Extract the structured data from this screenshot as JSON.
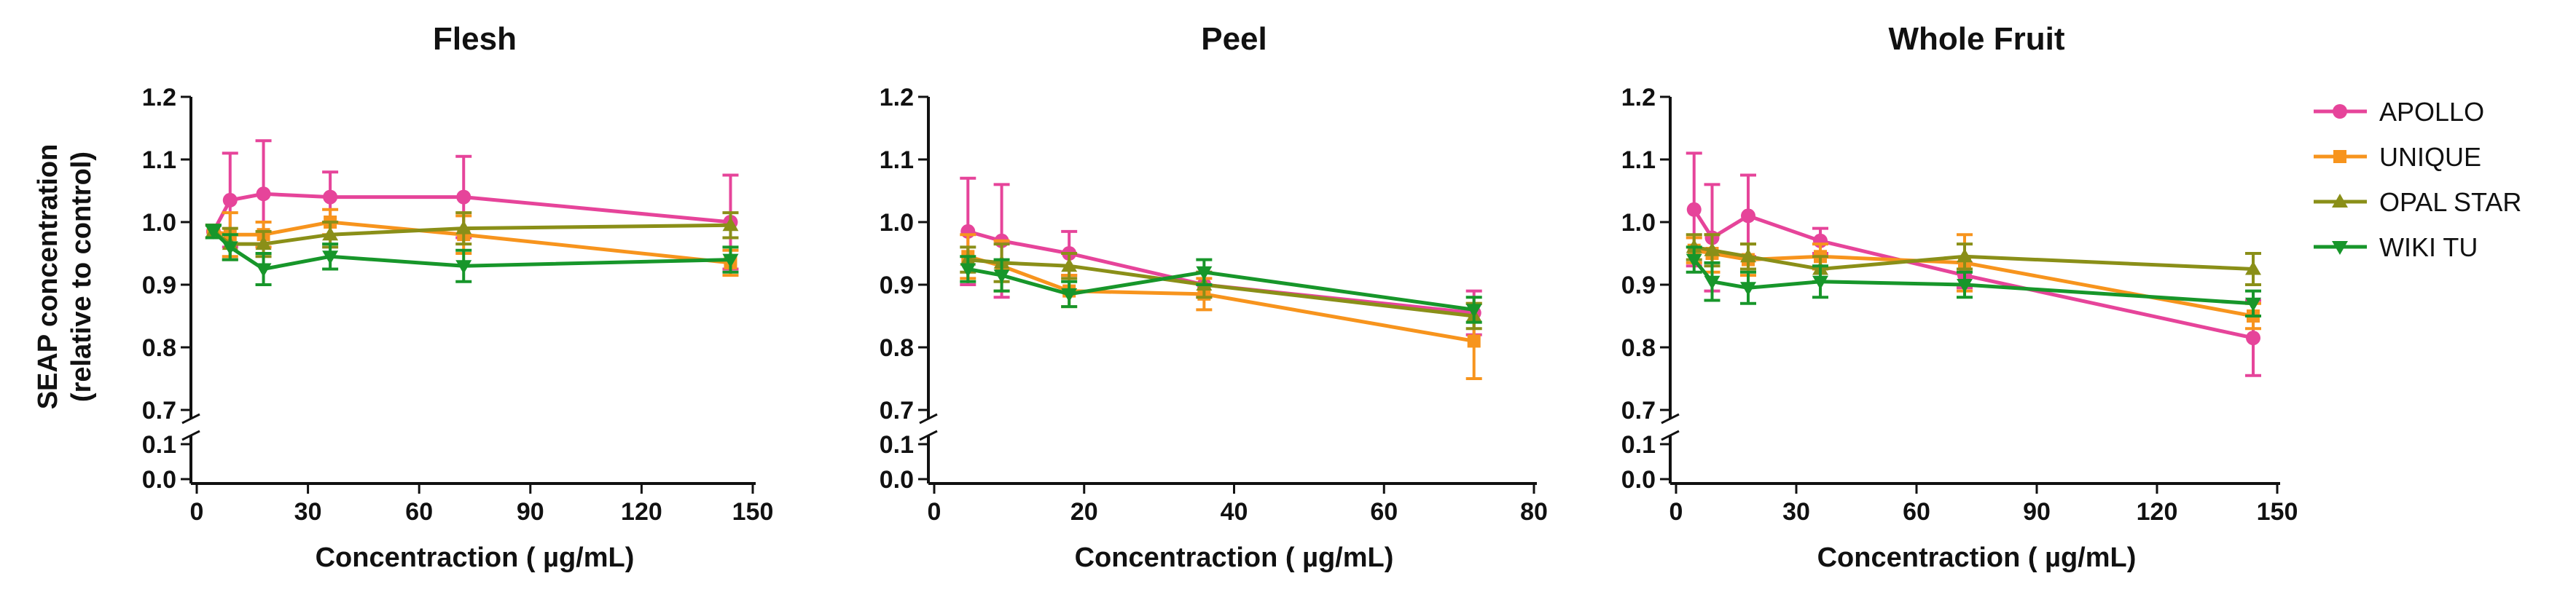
{
  "figure_ylabel": [
    "SEAP concentration",
    "(relative to control)"
  ],
  "legend": [
    {
      "name": "APOLLO",
      "color": "#e6449a",
      "marker": "circle"
    },
    {
      "name": "UNIQUE",
      "color": "#f7941d",
      "marker": "square"
    },
    {
      "name": "OPAL STAR",
      "color": "#8a8f18",
      "marker": "triangle-up"
    },
    {
      "name": "WIKI TU",
      "color": "#17962a",
      "marker": "triangle-down"
    }
  ],
  "chart_data": [
    {
      "type": "line",
      "title": "Flesh",
      "xlabel": "Concentraction ( µg/mL)",
      "ylabel": "SEAP concentration (relative to control)",
      "xlim": [
        0,
        150
      ],
      "xticks": [
        0,
        30,
        60,
        90,
        120,
        150
      ],
      "yticks_upper": [
        "0.7",
        "0.8",
        "0.9",
        "1.0",
        "1.1",
        "1.2"
      ],
      "yticks_lower": [
        "0.0",
        "0.1"
      ],
      "ylim_upper": [
        0.7,
        1.2
      ],
      "ylim_lower": [
        0.0,
        0.1
      ],
      "series": [
        {
          "name": "APOLLO",
          "x": [
            4.5,
            9,
            18,
            36,
            72,
            144
          ],
          "y": [
            0.985,
            1.035,
            1.045,
            1.04,
            1.04,
            1.0
          ],
          "err": [
            0.01,
            0.075,
            0.085,
            0.04,
            0.065,
            0.075
          ]
        },
        {
          "name": "UNIQUE",
          "x": [
            4.5,
            9,
            18,
            36,
            72,
            144
          ],
          "y": [
            0.985,
            0.98,
            0.98,
            1.0,
            0.98,
            0.935
          ],
          "err": [
            0.01,
            0.035,
            0.02,
            0.02,
            0.03,
            0.02
          ]
        },
        {
          "name": "OPAL STAR",
          "x": [
            4.5,
            9,
            18,
            36,
            72,
            144
          ],
          "y": [
            0.985,
            0.965,
            0.965,
            0.98,
            0.99,
            0.995
          ],
          "err": [
            0.01,
            0.025,
            0.02,
            0.02,
            0.025,
            0.02
          ]
        },
        {
          "name": "WIKI TU",
          "x": [
            4.5,
            9,
            18,
            36,
            72,
            144
          ],
          "y": [
            0.985,
            0.96,
            0.925,
            0.945,
            0.93,
            0.94
          ],
          "err": [
            0.01,
            0.02,
            0.025,
            0.02,
            0.025,
            0.02
          ]
        }
      ]
    },
    {
      "type": "line",
      "title": "Peel",
      "xlabel": "Concentraction ( µg/mL)",
      "ylabel": "SEAP concentration (relative to control)",
      "xlim": [
        0,
        80
      ],
      "xticks": [
        0,
        20,
        40,
        60,
        80
      ],
      "yticks_upper": [
        "0.7",
        "0.8",
        "0.9",
        "1.0",
        "1.1",
        "1.2"
      ],
      "yticks_lower": [
        "0.0",
        "0.1"
      ],
      "ylim_upper": [
        0.7,
        1.2
      ],
      "ylim_lower": [
        0.0,
        0.1
      ],
      "series": [
        {
          "name": "APOLLO",
          "x": [
            4.5,
            9,
            18,
            36,
            72
          ],
          "y": [
            0.985,
            0.97,
            0.95,
            0.9,
            0.855
          ],
          "err": [
            0.085,
            0.09,
            0.035,
            0.02,
            0.035
          ]
        },
        {
          "name": "UNIQUE",
          "x": [
            4.5,
            9,
            18,
            36,
            72
          ],
          "y": [
            0.945,
            0.93,
            0.89,
            0.885,
            0.81
          ],
          "err": [
            0.035,
            0.04,
            0.025,
            0.025,
            0.06
          ]
        },
        {
          "name": "OPAL STAR",
          "x": [
            4.5,
            9,
            18,
            36,
            72
          ],
          "y": [
            0.94,
            0.935,
            0.93,
            0.9,
            0.85
          ],
          "err": [
            0.02,
            0.03,
            0.02,
            0.02,
            0.02
          ]
        },
        {
          "name": "WIKI TU",
          "x": [
            4.5,
            9,
            18,
            36,
            72
          ],
          "y": [
            0.925,
            0.915,
            0.885,
            0.92,
            0.86
          ],
          "err": [
            0.02,
            0.025,
            0.02,
            0.02,
            0.02
          ]
        }
      ]
    },
    {
      "type": "line",
      "title": "Whole Fruit",
      "xlabel": "Concentraction ( µg/mL)",
      "ylabel": "SEAP concentration (relative to control)",
      "xlim": [
        0,
        150
      ],
      "xticks": [
        0,
        30,
        60,
        90,
        120,
        150
      ],
      "yticks_upper": [
        "0.7",
        "0.8",
        "0.9",
        "1.0",
        "1.1",
        "1.2"
      ],
      "yticks_lower": [
        "0.0",
        "0.1"
      ],
      "ylim_upper": [
        0.7,
        1.2
      ],
      "ylim_lower": [
        0.0,
        0.1
      ],
      "series": [
        {
          "name": "APOLLO",
          "x": [
            4.5,
            9,
            18,
            36,
            72,
            144
          ],
          "y": [
            1.02,
            0.975,
            1.01,
            0.97,
            0.915,
            0.815
          ],
          "err": [
            0.09,
            0.085,
            0.065,
            0.02,
            0.02,
            0.06
          ]
        },
        {
          "name": "UNIQUE",
          "x": [
            4.5,
            9,
            18,
            36,
            72,
            144
          ],
          "y": [
            0.955,
            0.95,
            0.94,
            0.945,
            0.935,
            0.85
          ],
          "err": [
            0.02,
            0.03,
            0.025,
            0.02,
            0.045,
            0.02
          ]
        },
        {
          "name": "OPAL STAR",
          "x": [
            4.5,
            9,
            18,
            36,
            72,
            144
          ],
          "y": [
            0.96,
            0.955,
            0.945,
            0.925,
            0.945,
            0.925
          ],
          "err": [
            0.02,
            0.025,
            0.02,
            0.02,
            0.02,
            0.025
          ]
        },
        {
          "name": "WIKI TU",
          "x": [
            4.5,
            9,
            18,
            36,
            72,
            144
          ],
          "y": [
            0.94,
            0.905,
            0.895,
            0.905,
            0.9,
            0.87
          ],
          "err": [
            0.02,
            0.03,
            0.025,
            0.025,
            0.02,
            0.02
          ]
        }
      ]
    }
  ]
}
